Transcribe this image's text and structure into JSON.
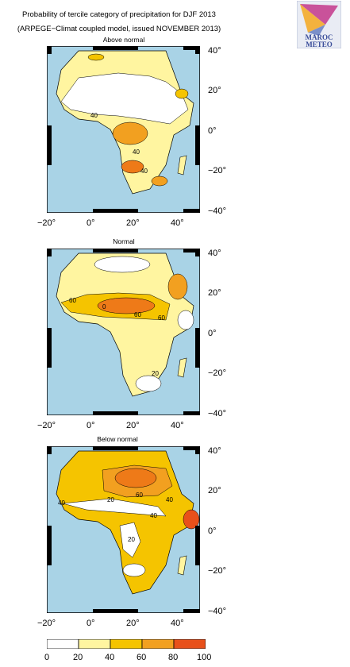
{
  "header": {
    "title_line1": "Probability of tercile category of precipitation for DJF 2013",
    "title_line2": "(ARPEGE−Climat coupled model, issued NOVEMBER 2013)"
  },
  "logo": {
    "text_top": "MAROC",
    "text_bottom": "METEO"
  },
  "panels": [
    {
      "title": "Above normal",
      "contour_labels": [
        "40",
        "40",
        "40"
      ]
    },
    {
      "title": "Normal",
      "contour_labels": [
        "60",
        "60",
        "0",
        "60",
        "20"
      ]
    },
    {
      "title": "Below normal",
      "contour_labels": [
        "20",
        "60",
        "40",
        "20",
        "40",
        "40"
      ]
    }
  ],
  "axes": {
    "lat_labels": [
      "40°",
      "20°",
      "0°",
      "−20°",
      "−40°"
    ],
    "lon_labels": [
      "−20°",
      "0°",
      "20°",
      "40°"
    ]
  },
  "colorbar": {
    "labels": [
      "0",
      "20",
      "40",
      "60",
      "80",
      "100"
    ],
    "colors": [
      "#ffffff",
      "#fff5a0",
      "#f5c400",
      "#f2a020",
      "#ee7a18",
      "#e8501a"
    ]
  },
  "colors": {
    "ocean": "#a9d3e6",
    "land_white": "#ffffff"
  }
}
